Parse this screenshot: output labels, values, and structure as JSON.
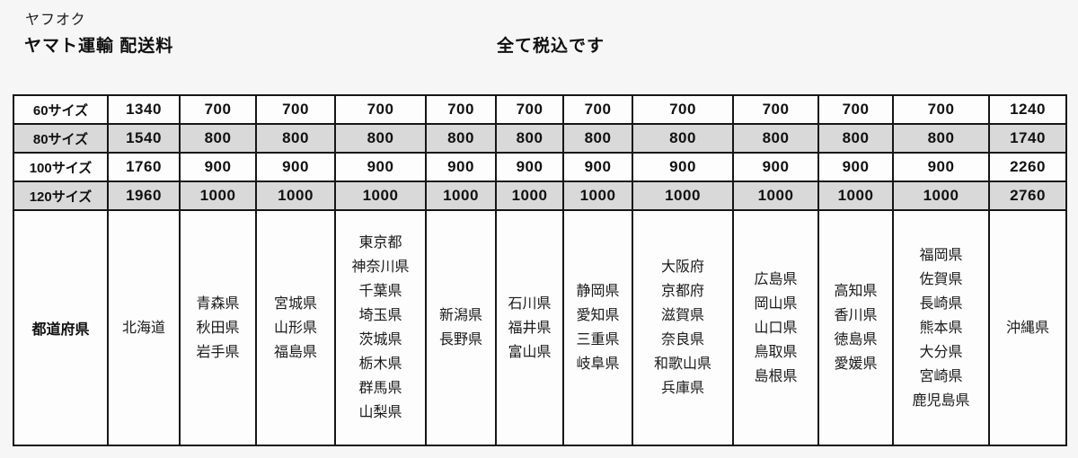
{
  "page": {
    "site_label": "ヤフオク",
    "title": "ヤマト運輸 配送料",
    "tax_note": "全て税込です"
  },
  "table": {
    "size_rows": [
      {
        "label": "60サイズ",
        "shaded": false,
        "values": [
          "1340",
          "700",
          "700",
          "700",
          "700",
          "700",
          "700",
          "700",
          "700",
          "700",
          "700",
          "1240"
        ]
      },
      {
        "label": "80サイズ",
        "shaded": true,
        "values": [
          "1540",
          "800",
          "800",
          "800",
          "800",
          "800",
          "800",
          "800",
          "800",
          "800",
          "800",
          "1740"
        ]
      },
      {
        "label": "100サイズ",
        "shaded": false,
        "values": [
          "1760",
          "900",
          "900",
          "900",
          "900",
          "900",
          "900",
          "900",
          "900",
          "900",
          "900",
          "2260"
        ]
      },
      {
        "label": "120サイズ",
        "shaded": true,
        "values": [
          "1960",
          "1000",
          "1000",
          "1000",
          "1000",
          "1000",
          "1000",
          "1000",
          "1000",
          "1000",
          "1000",
          "2760"
        ]
      }
    ],
    "prefecture_row": {
      "label": "都道府県",
      "cells": [
        [
          "北海道"
        ],
        [
          "青森県",
          "秋田県",
          "岩手県"
        ],
        [
          "宮城県",
          "山形県",
          "福島県"
        ],
        [
          "東京都",
          "神奈川県",
          "千葉県",
          "埼玉県",
          "茨城県",
          "栃木県",
          "群馬県",
          "山梨県"
        ],
        [
          "新潟県",
          "長野県"
        ],
        [
          "石川県",
          "福井県",
          "富山県"
        ],
        [
          "静岡県",
          "愛知県",
          "三重県",
          "岐阜県"
        ],
        [
          "大阪府",
          "京都府",
          "滋賀県",
          "奈良県",
          "和歌山県",
          "兵庫県"
        ],
        [
          "広島県",
          "岡山県",
          "山口県",
          "鳥取県",
          "島根県"
        ],
        [
          "高知県",
          "香川県",
          "徳島県",
          "愛媛県"
        ],
        [
          "福岡県",
          "佐賀県",
          "長崎県",
          "熊本県",
          "大分県",
          "宮崎県",
          "鹿児島県"
        ],
        [
          "沖縄県"
        ]
      ]
    }
  },
  "colors": {
    "page_background": "#f6f6f6",
    "cell_background": "#fdfdfd",
    "shaded_row": "#d9d9d9",
    "table_border": "#161616",
    "text": "#111111"
  }
}
